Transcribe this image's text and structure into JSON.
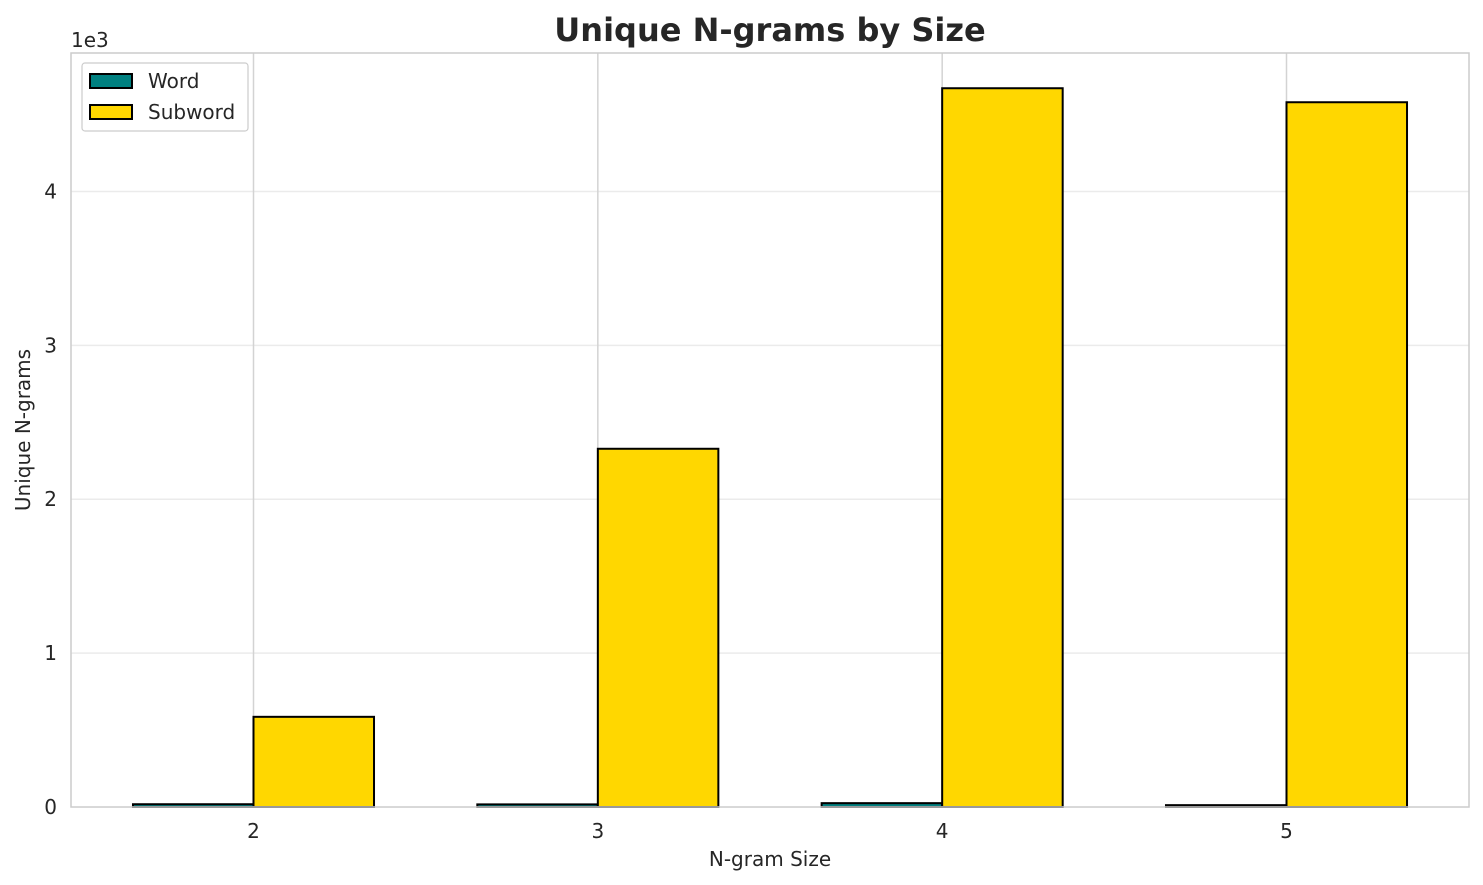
{
  "chart_data": {
    "type": "bar",
    "title": "Unique N-grams by Size",
    "xlabel": "N-gram Size",
    "ylabel": "Unique N-grams",
    "y_offset_label": "1e3",
    "categories": [
      "2",
      "3",
      "4",
      "5"
    ],
    "series": [
      {
        "name": "Word",
        "color": "#008080",
        "values": [
          18,
          17,
          25,
          12
        ]
      },
      {
        "name": "Subword",
        "color": "#FFD700",
        "values": [
          586,
          2328,
          4671,
          4580
        ]
      }
    ],
    "ylim": [
      0,
      4900
    ],
    "yticks": [
      0,
      1000,
      2000,
      3000,
      4000
    ],
    "ytick_labels": [
      "0",
      "1",
      "2",
      "3",
      "4"
    ],
    "grid": true,
    "legend_position": "top-left"
  }
}
